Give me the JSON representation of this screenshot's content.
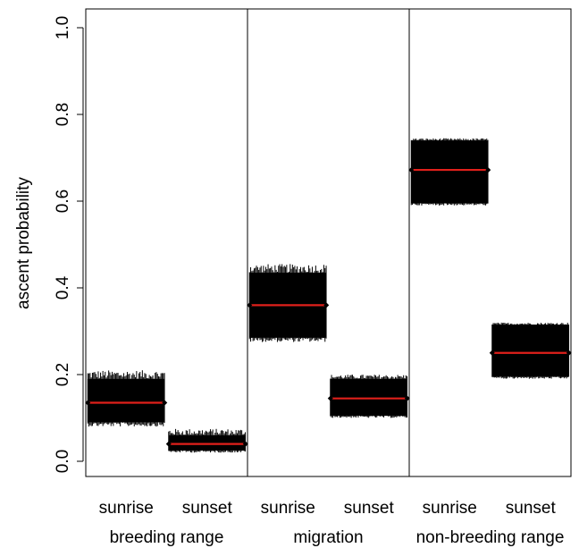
{
  "chart_data": {
    "type": "strip",
    "ylabel": "ascent probability",
    "ylim": [
      0,
      1
    ],
    "yticks": [
      "0.0",
      "0.2",
      "0.4",
      "0.6",
      "0.8",
      "1.0"
    ],
    "grid": false,
    "groups": [
      {
        "label": "breeding range",
        "categories": [
          {
            "label": "sunrise",
            "median": 0.135,
            "low": 0.08,
            "high": 0.21,
            "core_low": 0.09,
            "core_high": 0.19
          },
          {
            "label": "sunset",
            "median": 0.04,
            "low": 0.02,
            "high": 0.075,
            "core_low": 0.025,
            "core_high": 0.06
          }
        ]
      },
      {
        "label": "migration",
        "categories": [
          {
            "label": "sunrise",
            "median": 0.36,
            "low": 0.275,
            "high": 0.455,
            "core_low": 0.285,
            "core_high": 0.435
          },
          {
            "label": "sunset",
            "median": 0.145,
            "low": 0.1,
            "high": 0.2,
            "core_low": 0.105,
            "core_high": 0.19
          }
        ]
      },
      {
        "label": "non-breeding range",
        "categories": [
          {
            "label": "sunrise",
            "median": 0.672,
            "low": 0.59,
            "high": 0.745,
            "core_low": 0.595,
            "core_high": 0.74
          },
          {
            "label": "sunset",
            "median": 0.25,
            "low": 0.19,
            "high": 0.32,
            "core_low": 0.195,
            "core_high": 0.315
          }
        ]
      }
    ],
    "colors": {
      "samples": "#000000",
      "median": "#e0201b",
      "axis": "#000000"
    }
  }
}
